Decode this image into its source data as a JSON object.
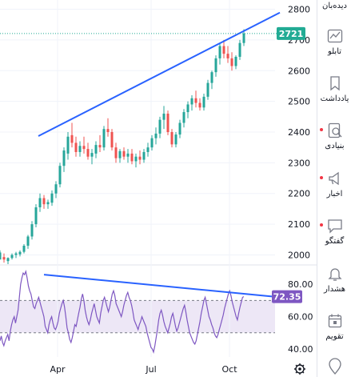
{
  "chart_data": [
    {
      "type": "candlestick",
      "ylim": [
        1970,
        2830
      ],
      "yticks": [
        "2800",
        "2700",
        "2600",
        "2500",
        "2400",
        "2300",
        "2200",
        "2100",
        "2000"
      ],
      "xticks": [
        "Apr",
        "Jul",
        "Oct"
      ],
      "last_price_label": "2721",
      "last_price": 2721,
      "trendline": {
        "from": {
          "x": "Apr",
          "y": 2387
        },
        "to": {
          "x": "Nov",
          "y": 2789
        }
      },
      "ohlc": [
        [
          1985,
          2015,
          1990,
          2008
        ],
        [
          1993,
          2005,
          1975,
          1985
        ],
        [
          1980,
          1992,
          1970,
          1990
        ],
        [
          1990,
          2005,
          1985,
          2000
        ],
        [
          2000,
          2010,
          1990,
          2005
        ],
        [
          2002,
          2015,
          1995,
          2010
        ],
        [
          2010,
          2035,
          2005,
          2030
        ],
        [
          2030,
          2065,
          2020,
          2060
        ],
        [
          2060,
          2110,
          2050,
          2100
        ],
        [
          2100,
          2165,
          2090,
          2155
        ],
        [
          2155,
          2200,
          2140,
          2185
        ],
        [
          2185,
          2195,
          2150,
          2165
        ],
        [
          2165,
          2180,
          2150,
          2172
        ],
        [
          2170,
          2210,
          2160,
          2200
        ],
        [
          2200,
          2240,
          2185,
          2230
        ],
        [
          2230,
          2300,
          2220,
          2290
        ],
        [
          2290,
          2350,
          2270,
          2340
        ],
        [
          2330,
          2400,
          2310,
          2385
        ],
        [
          2390,
          2430,
          2350,
          2365
        ],
        [
          2365,
          2385,
          2320,
          2335
        ],
        [
          2335,
          2370,
          2320,
          2355
        ],
        [
          2355,
          2385,
          2330,
          2345
        ],
        [
          2345,
          2365,
          2310,
          2320
        ],
        [
          2320,
          2345,
          2295,
          2332
        ],
        [
          2330,
          2370,
          2315,
          2358
        ],
        [
          2358,
          2390,
          2335,
          2350
        ],
        [
          2350,
          2420,
          2340,
          2410
        ],
        [
          2410,
          2445,
          2385,
          2400
        ],
        [
          2400,
          2410,
          2340,
          2350
        ],
        [
          2350,
          2365,
          2300,
          2315
        ],
        [
          2315,
          2345,
          2300,
          2338
        ],
        [
          2338,
          2350,
          2310,
          2320
        ],
        [
          2320,
          2345,
          2300,
          2330
        ],
        [
          2330,
          2345,
          2295,
          2305
        ],
        [
          2305,
          2330,
          2285,
          2320
        ],
        [
          2320,
          2340,
          2295,
          2310
        ],
        [
          2310,
          2345,
          2300,
          2335
        ],
        [
          2335,
          2365,
          2320,
          2350
        ],
        [
          2350,
          2390,
          2340,
          2380
        ],
        [
          2380,
          2415,
          2360,
          2395
        ],
        [
          2395,
          2450,
          2380,
          2440
        ],
        [
          2440,
          2485,
          2410,
          2460
        ],
        [
          2460,
          2470,
          2390,
          2400
        ],
        [
          2400,
          2410,
          2350,
          2360
        ],
        [
          2360,
          2400,
          2350,
          2392
        ],
        [
          2392,
          2440,
          2380,
          2430
        ],
        [
          2430,
          2475,
          2415,
          2465
        ],
        [
          2465,
          2500,
          2445,
          2490
        ],
        [
          2490,
          2520,
          2470,
          2510
        ],
        [
          2510,
          2535,
          2480,
          2495
        ],
        [
          2495,
          2510,
          2470,
          2480
        ],
        [
          2480,
          2525,
          2470,
          2515
        ],
        [
          2515,
          2570,
          2505,
          2560
        ],
        [
          2560,
          2600,
          2540,
          2595
        ],
        [
          2595,
          2650,
          2580,
          2640
        ],
        [
          2640,
          2690,
          2620,
          2680
        ],
        [
          2680,
          2700,
          2640,
          2655
        ],
        [
          2655,
          2680,
          2625,
          2640
        ],
        [
          2640,
          2660,
          2600,
          2615
        ],
        [
          2615,
          2650,
          2605,
          2645
        ],
        [
          2645,
          2700,
          2635,
          2690
        ],
        [
          2690,
          2735,
          2680,
          2721
        ]
      ]
    },
    {
      "type": "line",
      "ylim": [
        35,
        92
      ],
      "yticks": [
        "80.00",
        "60.00",
        "40.00"
      ],
      "reference_lines": [
        70,
        50
      ],
      "last_value_label": "72.35",
      "last_value": 72.35,
      "trendline": {
        "from": {
          "x": "Mar",
          "y": 86
        },
        "to": {
          "x": "Nov",
          "y": 72.5
        }
      },
      "values": [
        45,
        48,
        44,
        42,
        45,
        47,
        49,
        45,
        51,
        55,
        58,
        60,
        56,
        60,
        64,
        72,
        80,
        84,
        87,
        86,
        88,
        84,
        79,
        76,
        74,
        70,
        66,
        65,
        68,
        70,
        72,
        69,
        66,
        63,
        60,
        54,
        52,
        50,
        55,
        58,
        60,
        56,
        53,
        52,
        54,
        57,
        62,
        65,
        68,
        70,
        66,
        60,
        53,
        50,
        46,
        44,
        47,
        51,
        55,
        54,
        58,
        62,
        66,
        71,
        74,
        70,
        64,
        60,
        57,
        55,
        58,
        62,
        65,
        68,
        64,
        60,
        58,
        56,
        62,
        66,
        70,
        72,
        69,
        66,
        63,
        66,
        70,
        74,
        76,
        73,
        68,
        66,
        64,
        62,
        60,
        63,
        67,
        70,
        73,
        75,
        72,
        70,
        67,
        63,
        58,
        56,
        54,
        52,
        55,
        57,
        60,
        58,
        56,
        54,
        50,
        47,
        44,
        41,
        40,
        38,
        42,
        47,
        52,
        58,
        62,
        64,
        61,
        57,
        54,
        52,
        50,
        53,
        56,
        60,
        62,
        58,
        54,
        51,
        53,
        56,
        59,
        62,
        65,
        67,
        63,
        58,
        54,
        50,
        48,
        46,
        44,
        43,
        45,
        49,
        53,
        57,
        62,
        66,
        70,
        72,
        68,
        64,
        60,
        58,
        55,
        53,
        50,
        48,
        47,
        49,
        52,
        55,
        58,
        61,
        65,
        68,
        71,
        74,
        76,
        73,
        69,
        66,
        63,
        60,
        58,
        62,
        66,
        69,
        72,
        72.35
      ]
    }
  ],
  "sidebar": {
    "items": [
      {
        "label": "دیده‌بان",
        "icon": "watchlist-icon"
      },
      {
        "label": "تابلو",
        "icon": "board-chart-icon"
      },
      {
        "label": "یادداشت",
        "icon": "notes-icon"
      },
      {
        "label": "بنیادی",
        "icon": "fundamentals-search-icon"
      },
      {
        "label": "اخبار",
        "icon": "news-megaphone-icon"
      },
      {
        "label": "گفتگو",
        "icon": "chat-icon"
      },
      {
        "label": "هشدار",
        "icon": "alert-bell-icon"
      },
      {
        "label": "تقویم",
        "icon": "calendar-icon"
      },
      {
        "label": "",
        "icon": "location-pin-icon"
      }
    ]
  },
  "colors": {
    "up": "#26a69a",
    "down": "#ef5350",
    "trendline": "#2962ff",
    "rsi_line": "#7e57c2",
    "rsi_band": "#ede7f6",
    "price_badge": "#22ab94",
    "rsi_badge": "#7e57c2",
    "grid": "#e0e3eb"
  }
}
